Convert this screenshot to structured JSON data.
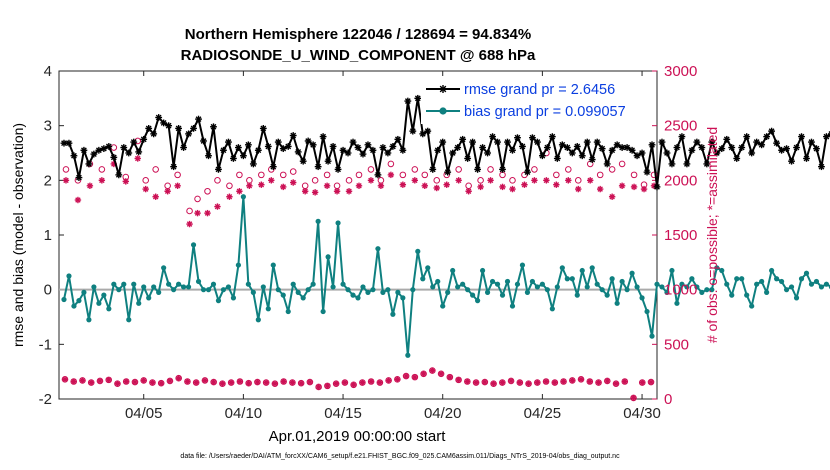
{
  "chart_data": {
    "type": "line",
    "title": [
      "Northern Hemisphere 122046 / 128694 = 94.834%",
      "RADIOSONDE_U_WIND_COMPONENT @ 688 hPa"
    ],
    "xlabel": "Apr.01,2019 00:00:00 start",
    "ylabel_left": "rmse and bias (model - observation)",
    "ylabel_right": "# of obs: o=possible; *=assimilated",
    "footnote": "data file: /Users/raeder/DAI/ATM_forcXX/CAM6_setup/f.e21.FHIST_BGC.f09_025.CAM6assim.011/Diags_NTrS_2019-04/obs_diag_output.nc",
    "xlim": [
      0.75,
      30.75
    ],
    "ylim_left": [
      -2,
      4
    ],
    "ylim_right": [
      0,
      3000
    ],
    "x_ticks": [
      5,
      10,
      15,
      20,
      25,
      30
    ],
    "x_tick_labels": [
      "04/05",
      "04/10",
      "04/15",
      "04/20",
      "04/25",
      "04/30"
    ],
    "y_left_ticks": [
      "-2",
      "-1",
      "0",
      "1",
      "2",
      "3",
      "4"
    ],
    "y_right_ticks": [
      "0",
      "500",
      "1000",
      "1500",
      "2000",
      "2500",
      "3000"
    ],
    "legend": [
      "rmse grand pr = 2.6456",
      "bias grand pr = 0.099057"
    ],
    "legend_position": "top-right",
    "colors": {
      "rmse": "#000000",
      "bias": "#0f8080",
      "obs": "#cc1155",
      "zero_line": "#aaaaaa",
      "right_axis": "#cc1155"
    },
    "x_start": 1,
    "x_step": 0.25,
    "rmse": [
      2.68,
      2.68,
      2.45,
      2.05,
      2.55,
      2.3,
      2.48,
      2.55,
      2.58,
      2.62,
      2.42,
      2.1,
      2.6,
      2.5,
      2.7,
      2.52,
      2.75,
      2.95,
      2.85,
      3.15,
      3.05,
      3.0,
      2.25,
      2.95,
      2.6,
      2.85,
      2.95,
      3.12,
      2.72,
      2.45,
      2.98,
      2.2,
      2.55,
      2.7,
      2.4,
      2.6,
      2.45,
      2.65,
      2.3,
      2.55,
      2.95,
      2.62,
      2.25,
      2.7,
      2.58,
      2.62,
      2.82,
      2.52,
      2.35,
      2.72,
      2.65,
      2.25,
      2.8,
      2.35,
      2.62,
      2.2,
      2.55,
      2.5,
      2.7,
      2.6,
      2.48,
      2.65,
      2.55,
      2.1,
      2.6,
      2.5,
      2.62,
      2.75,
      2.55,
      3.45,
      2.9,
      3.5,
      2.85,
      2.9,
      2.2,
      2.55,
      2.7,
      2.15,
      2.5,
      2.6,
      2.75,
      2.4,
      2.7,
      2.2,
      2.6,
      2.5,
      2.8,
      2.7,
      2.2,
      2.7,
      2.55,
      2.78,
      2.62,
      2.15,
      2.78,
      2.7,
      2.45,
      2.6,
      2.8,
      2.4,
      2.65,
      2.6,
      2.5,
      2.62,
      2.45,
      2.7,
      2.38,
      2.7,
      2.58,
      2.3,
      2.55,
      2.65,
      2.6,
      2.6,
      2.55,
      2.45,
      2.5,
      2.15,
      2.65,
      1.88,
      2.7,
      2.5,
      2.3,
      2.6,
      2.8,
      2.3,
      2.55,
      2.7,
      2.6,
      2.3,
      2.7,
      2.5,
      2.58,
      2.75,
      2.6,
      2.4,
      2.6,
      2.8,
      2.5,
      2.7,
      2.65,
      2.8,
      2.9,
      2.68,
      2.55,
      2.58,
      2.35,
      2.6,
      2.8,
      2.4,
      2.7,
      2.58,
      2.25,
      2.8,
      2.85,
      2.9,
      2.85,
      2.6,
      2.7,
      2.8,
      2.4,
      2.6,
      2.9,
      2.85,
      2.7,
      2.35,
      2.7,
      2.5,
      2.35,
      2.3
    ],
    "bias": [
      -0.18,
      0.25,
      -0.3,
      -0.2,
      -0.05,
      -0.55,
      0.05,
      -0.25,
      -0.1,
      -0.35,
      0.1,
      0.0,
      0.1,
      -0.55,
      0.1,
      -0.25,
      0.05,
      -0.15,
      0.05,
      -0.05,
      0.4,
      0.1,
      0.0,
      0.1,
      0.05,
      0.05,
      0.82,
      0.15,
      0.0,
      0.0,
      0.1,
      -0.2,
      0.0,
      0.05,
      -0.15,
      0.45,
      1.7,
      0.1,
      -0.05,
      -0.55,
      0.05,
      -0.35,
      0.45,
      0.0,
      -0.1,
      -0.4,
      0.1,
      -0.05,
      -0.15,
      0.0,
      0.1,
      1.25,
      -0.4,
      0.6,
      0.05,
      1.22,
      0.1,
      0.0,
      -0.1,
      -0.15,
      0.05,
      -0.05,
      0.0,
      0.75,
      -0.05,
      0.0,
      -0.45,
      -0.05,
      -0.15,
      -1.2,
      0.0,
      0.7,
      0.2,
      0.4,
      0.05,
      0.15,
      -0.3,
      -0.05,
      0.35,
      0.05,
      0.1,
      0.0,
      -0.1,
      -0.2,
      0.35,
      -0.05,
      0.15,
      0.1,
      -0.1,
      0.15,
      -0.3,
      0.1,
      0.45,
      -0.05,
      0.15,
      0.05,
      0.1,
      0.0,
      -0.35,
      0.05,
      0.4,
      0.2,
      0.2,
      -0.1,
      0.35,
      0.05,
      0.4,
      0.1,
      0.0,
      -0.1,
      0.2,
      -0.25,
      0.15,
      0.0,
      0.3,
      0.05,
      -0.15,
      -0.4,
      -0.85,
      0.1,
      0.05,
      -0.05,
      0.35,
      -0.25,
      0.1,
      0.05,
      0.2,
      0.05,
      -0.05,
      0.0,
      0.0,
      0.4,
      0.35,
      0.1,
      -0.1,
      0.2,
      0.2,
      -0.1,
      -0.3,
      0.1,
      0.15,
      -0.05,
      0.35,
      0.2,
      0.15,
      0.0,
      0.05,
      -0.15,
      0.2,
      0.3,
      0.1,
      0.15,
      0.05,
      0.1,
      0.05,
      0.0,
      0.2,
      0.2,
      -0.25,
      0.35,
      -0.1,
      0.15,
      0.55,
      0.25,
      0.05,
      0.1,
      0.3,
      0.05,
      -0.1,
      0.75,
      0.15,
      0.0,
      0.0,
      0.05,
      0.6,
      -0.05,
      0.1,
      -0.2,
      0.45,
      -0.05,
      -0.05,
      -0.1,
      -0.25,
      -0.05,
      -0.1
    ],
    "obs_points": [
      {
        "x": 1.1,
        "possible": 2100,
        "assimilated": 2000
      },
      {
        "x": 1.7,
        "possible": 2000,
        "assimilated": 1820
      },
      {
        "x": 2.3,
        "possible": 2150,
        "assimilated": 1950
      },
      {
        "x": 2.9,
        "possible": 2100,
        "assimilated": 2000
      },
      {
        "x": 3.5,
        "possible": 2300,
        "assimilated": 2150
      },
      {
        "x": 4.1,
        "possible": 2030,
        "assimilated": 1990
      },
      {
        "x": 4.7,
        "possible": 2360,
        "assimilated": 2200
      },
      {
        "x": 5.1,
        "possible": 2000,
        "assimilated": 1920
      },
      {
        "x": 5.6,
        "possible": 2100,
        "assimilated": 1850
      },
      {
        "x": 6.2,
        "possible": 1950,
        "assimilated": 1900
      },
      {
        "x": 6.7,
        "possible": 2050,
        "assimilated": 1950
      },
      {
        "x": 7.3,
        "possible": 1720,
        "assimilated": 1600
      },
      {
        "x": 7.7,
        "possible": 1830,
        "assimilated": 1700
      },
      {
        "x": 8.2,
        "possible": 1900,
        "assimilated": 1700
      },
      {
        "x": 8.7,
        "possible": 2000,
        "assimilated": 1760
      },
      {
        "x": 9.3,
        "possible": 1950,
        "assimilated": 1850
      },
      {
        "x": 9.8,
        "possible": 2050,
        "assimilated": 1900
      },
      {
        "x": 10.3,
        "possible": 2000,
        "assimilated": 1950
      },
      {
        "x": 10.9,
        "possible": 2050,
        "assimilated": 1960
      },
      {
        "x": 11.4,
        "possible": 2100,
        "assimilated": 2000
      },
      {
        "x": 12.0,
        "possible": 2050,
        "assimilated": 1940
      },
      {
        "x": 12.5,
        "possible": 2080,
        "assimilated": 1980
      },
      {
        "x": 13.1,
        "possible": 1950,
        "assimilated": 1900
      },
      {
        "x": 13.6,
        "possible": 2000,
        "assimilated": 1890
      },
      {
        "x": 14.2,
        "possible": 2050,
        "assimilated": 1950
      },
      {
        "x": 14.7,
        "possible": 1950,
        "assimilated": 1900
      },
      {
        "x": 15.3,
        "possible": 2000,
        "assimilated": 1900
      },
      {
        "x": 15.8,
        "possible": 2050,
        "assimilated": 1950
      },
      {
        "x": 16.4,
        "possible": 2100,
        "assimilated": 2000
      },
      {
        "x": 16.9,
        "possible": 2000,
        "assimilated": 1950
      },
      {
        "x": 17.4,
        "possible": 2150,
        "assimilated": 2050
      },
      {
        "x": 18.0,
        "possible": 2050,
        "assimilated": 1960
      },
      {
        "x": 18.6,
        "possible": 2100,
        "assimilated": 2000
      },
      {
        "x": 19.1,
        "possible": 2050,
        "assimilated": 1950
      },
      {
        "x": 19.7,
        "possible": 2000,
        "assimilated": 1930
      },
      {
        "x": 20.2,
        "possible": 2050,
        "assimilated": 1960
      },
      {
        "x": 20.8,
        "possible": 2100,
        "assimilated": 2000
      },
      {
        "x": 21.3,
        "possible": 1950,
        "assimilated": 1900
      },
      {
        "x": 21.9,
        "possible": 2000,
        "assimilated": 1940
      },
      {
        "x": 22.4,
        "possible": 2100,
        "assimilated": 2000
      },
      {
        "x": 23.0,
        "possible": 2050,
        "assimilated": 1940
      },
      {
        "x": 23.5,
        "possible": 2000,
        "assimilated": 1920
      },
      {
        "x": 24.1,
        "possible": 2050,
        "assimilated": 1960
      },
      {
        "x": 24.6,
        "possible": 2100,
        "assimilated": 2000
      },
      {
        "x": 25.2,
        "possible": 2250,
        "assimilated": 2000
      },
      {
        "x": 25.7,
        "possible": 2050,
        "assimilated": 1960
      },
      {
        "x": 26.3,
        "possible": 2100,
        "assimilated": 2000
      },
      {
        "x": 26.8,
        "possible": 2000,
        "assimilated": 1920
      },
      {
        "x": 27.4,
        "possible": 2150,
        "assimilated": 2000
      },
      {
        "x": 27.9,
        "possible": 2050,
        "assimilated": 1920
      },
      {
        "x": 28.5,
        "possible": 2100,
        "assimilated": 1850
      },
      {
        "x": 29.0,
        "possible": 2150,
        "assimilated": 1950
      },
      {
        "x": 29.6,
        "possible": 2050,
        "assimilated": 1940
      },
      {
        "x": 30.1,
        "possible": 1960,
        "assimilated": 1920
      },
      {
        "x": 30.6,
        "possible": 2050,
        "assimilated": 1950
      }
    ],
    "obs_bottom": [
      180,
      160,
      170,
      150,
      165,
      175,
      140,
      160,
      155,
      170,
      150,
      145,
      165,
      190,
      160,
      150,
      170,
      155,
      140,
      150,
      160,
      145,
      155,
      150,
      140,
      160,
      150,
      145,
      155,
      110,
      120,
      140,
      150,
      130,
      150,
      160,
      150,
      170,
      180,
      210,
      200,
      230,
      260,
      230,
      200,
      175,
      160,
      150,
      155,
      140,
      150,
      165,
      150,
      140,
      150,
      160,
      150,
      160,
      170,
      180,
      160,
      150,
      165,
      140,
      160,
      10,
      150,
      155
    ]
  }
}
